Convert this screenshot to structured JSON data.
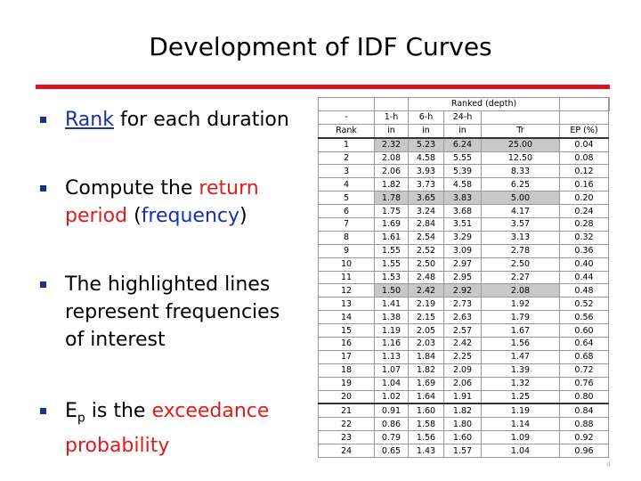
{
  "title": "Development of IDF Curves",
  "bullets": [
    [
      "Rank",
      " for each duration"
    ],
    [
      "Compute the ",
      "return period",
      " (",
      "frequency",
      ")"
    ],
    [
      "The highlighted lines represent frequencies of interest"
    ],
    [
      "E",
      "p",
      " is the ",
      "exceedance probability"
    ]
  ],
  "table": {
    "header": [
      [
        "",
        "Ranked (depth)",
        "",
        ""
      ],
      [
        "-",
        "1-h",
        "6-h",
        "24-h",
        "",
        ""
      ],
      [
        "Rank",
        "in",
        "in",
        "in",
        "Tr",
        "EP (%)"
      ]
    ],
    "highlighted_rows": [
      0,
      4,
      11
    ],
    "rows": [
      [
        "1",
        "2.32",
        "5.23",
        "6.24",
        "25.00",
        "0.04"
      ],
      [
        "2",
        "2.08",
        "4.58",
        "5.55",
        "12.50",
        "0.08"
      ],
      [
        "3",
        "2.06",
        "3.93",
        "5.39",
        "8.33",
        "0.12"
      ],
      [
        "4",
        "1.82",
        "3.73",
        "4.58",
        "6.25",
        "0.16"
      ],
      [
        "5",
        "1.78",
        "3.65",
        "3.83",
        "5.00",
        "0.20"
      ],
      [
        "6",
        "1.75",
        "3.24",
        "3.68",
        "4.17",
        "0.24"
      ],
      [
        "7",
        "1.69",
        "2.84",
        "3.51",
        "3.57",
        "0.28"
      ],
      [
        "8",
        "1.61",
        "2.54",
        "3.29",
        "3.13",
        "0.32"
      ],
      [
        "9",
        "1.55",
        "2.52",
        "3.09",
        "2.78",
        "0.36"
      ],
      [
        "10",
        "1.55",
        "2.50",
        "2.97",
        "2.50",
        "0.40"
      ],
      [
        "11",
        "1.53",
        "2.48",
        "2.95",
        "2.27",
        "0.44"
      ],
      [
        "12",
        "1.50",
        "2.42",
        "2.92",
        "2.08",
        "0.48"
      ],
      [
        "13",
        "1.41",
        "2.19",
        "2.73",
        "1.92",
        "0.52"
      ],
      [
        "14",
        "1.38",
        "2.15",
        "2.63",
        "1.79",
        "0.56"
      ],
      [
        "15",
        "1.19",
        "2.05",
        "2.57",
        "1.67",
        "0.60"
      ],
      [
        "16",
        "1.16",
        "2.03",
        "2.42",
        "1.56",
        "0.64"
      ],
      [
        "17",
        "1.13",
        "1.84",
        "2.25",
        "1.47",
        "0.68"
      ],
      [
        "18",
        "1.07",
        "1.82",
        "2.09",
        "1.39",
        "0.72"
      ],
      [
        "19",
        "1.04",
        "1.69",
        "2.06",
        "1.32",
        "0.76"
      ],
      [
        "20",
        "1.02",
        "1.64",
        "1.91",
        "1.25",
        "0.80"
      ],
      [
        "21",
        "0.91",
        "1.60",
        "1.82",
        "1.19",
        "0.84"
      ],
      [
        "22",
        "0.86",
        "1.58",
        "1.80",
        "1.14",
        "0.88"
      ],
      [
        "23",
        "0.79",
        "1.56",
        "1.60",
        "1.09",
        "0.92"
      ],
      [
        "24",
        "0.65",
        "1.43",
        "1.57",
        "1.04",
        "0.96"
      ]
    ]
  },
  "page_number": "4"
}
